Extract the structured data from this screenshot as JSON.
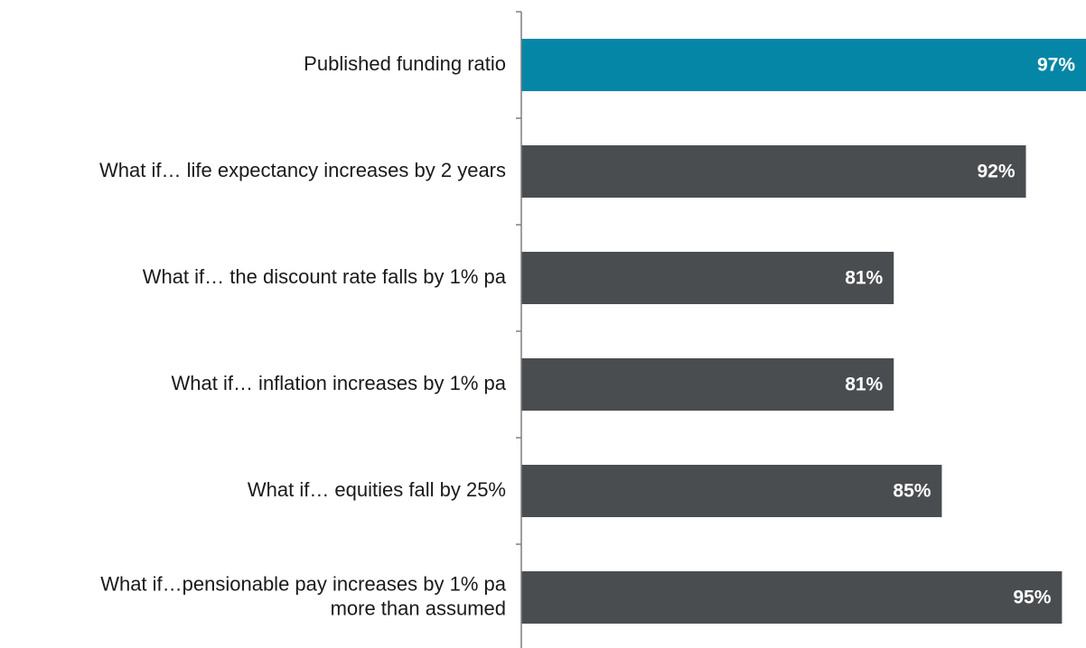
{
  "chart_data": {
    "type": "bar",
    "orientation": "horizontal",
    "categories": [
      "Published funding ratio",
      "What if… life expectancy increases by 2 years",
      "What if… the discount rate falls by 1% pa",
      "What if… inflation increases by 1% pa",
      "What if… equities fall by 25%",
      [
        "What if…pensionable pay increases by 1% pa",
        "more than assumed"
      ]
    ],
    "values": [
      97,
      92,
      81,
      81,
      85,
      95
    ],
    "value_labels": [
      "97%",
      "92%",
      "81%",
      "81%",
      "85%",
      "95%"
    ],
    "colors": [
      "#0686a6",
      "#4a4d50",
      "#4a4d50",
      "#4a4d50",
      "#4a4d50",
      "#4a4d50"
    ],
    "xlim": [
      50,
      97
    ]
  }
}
